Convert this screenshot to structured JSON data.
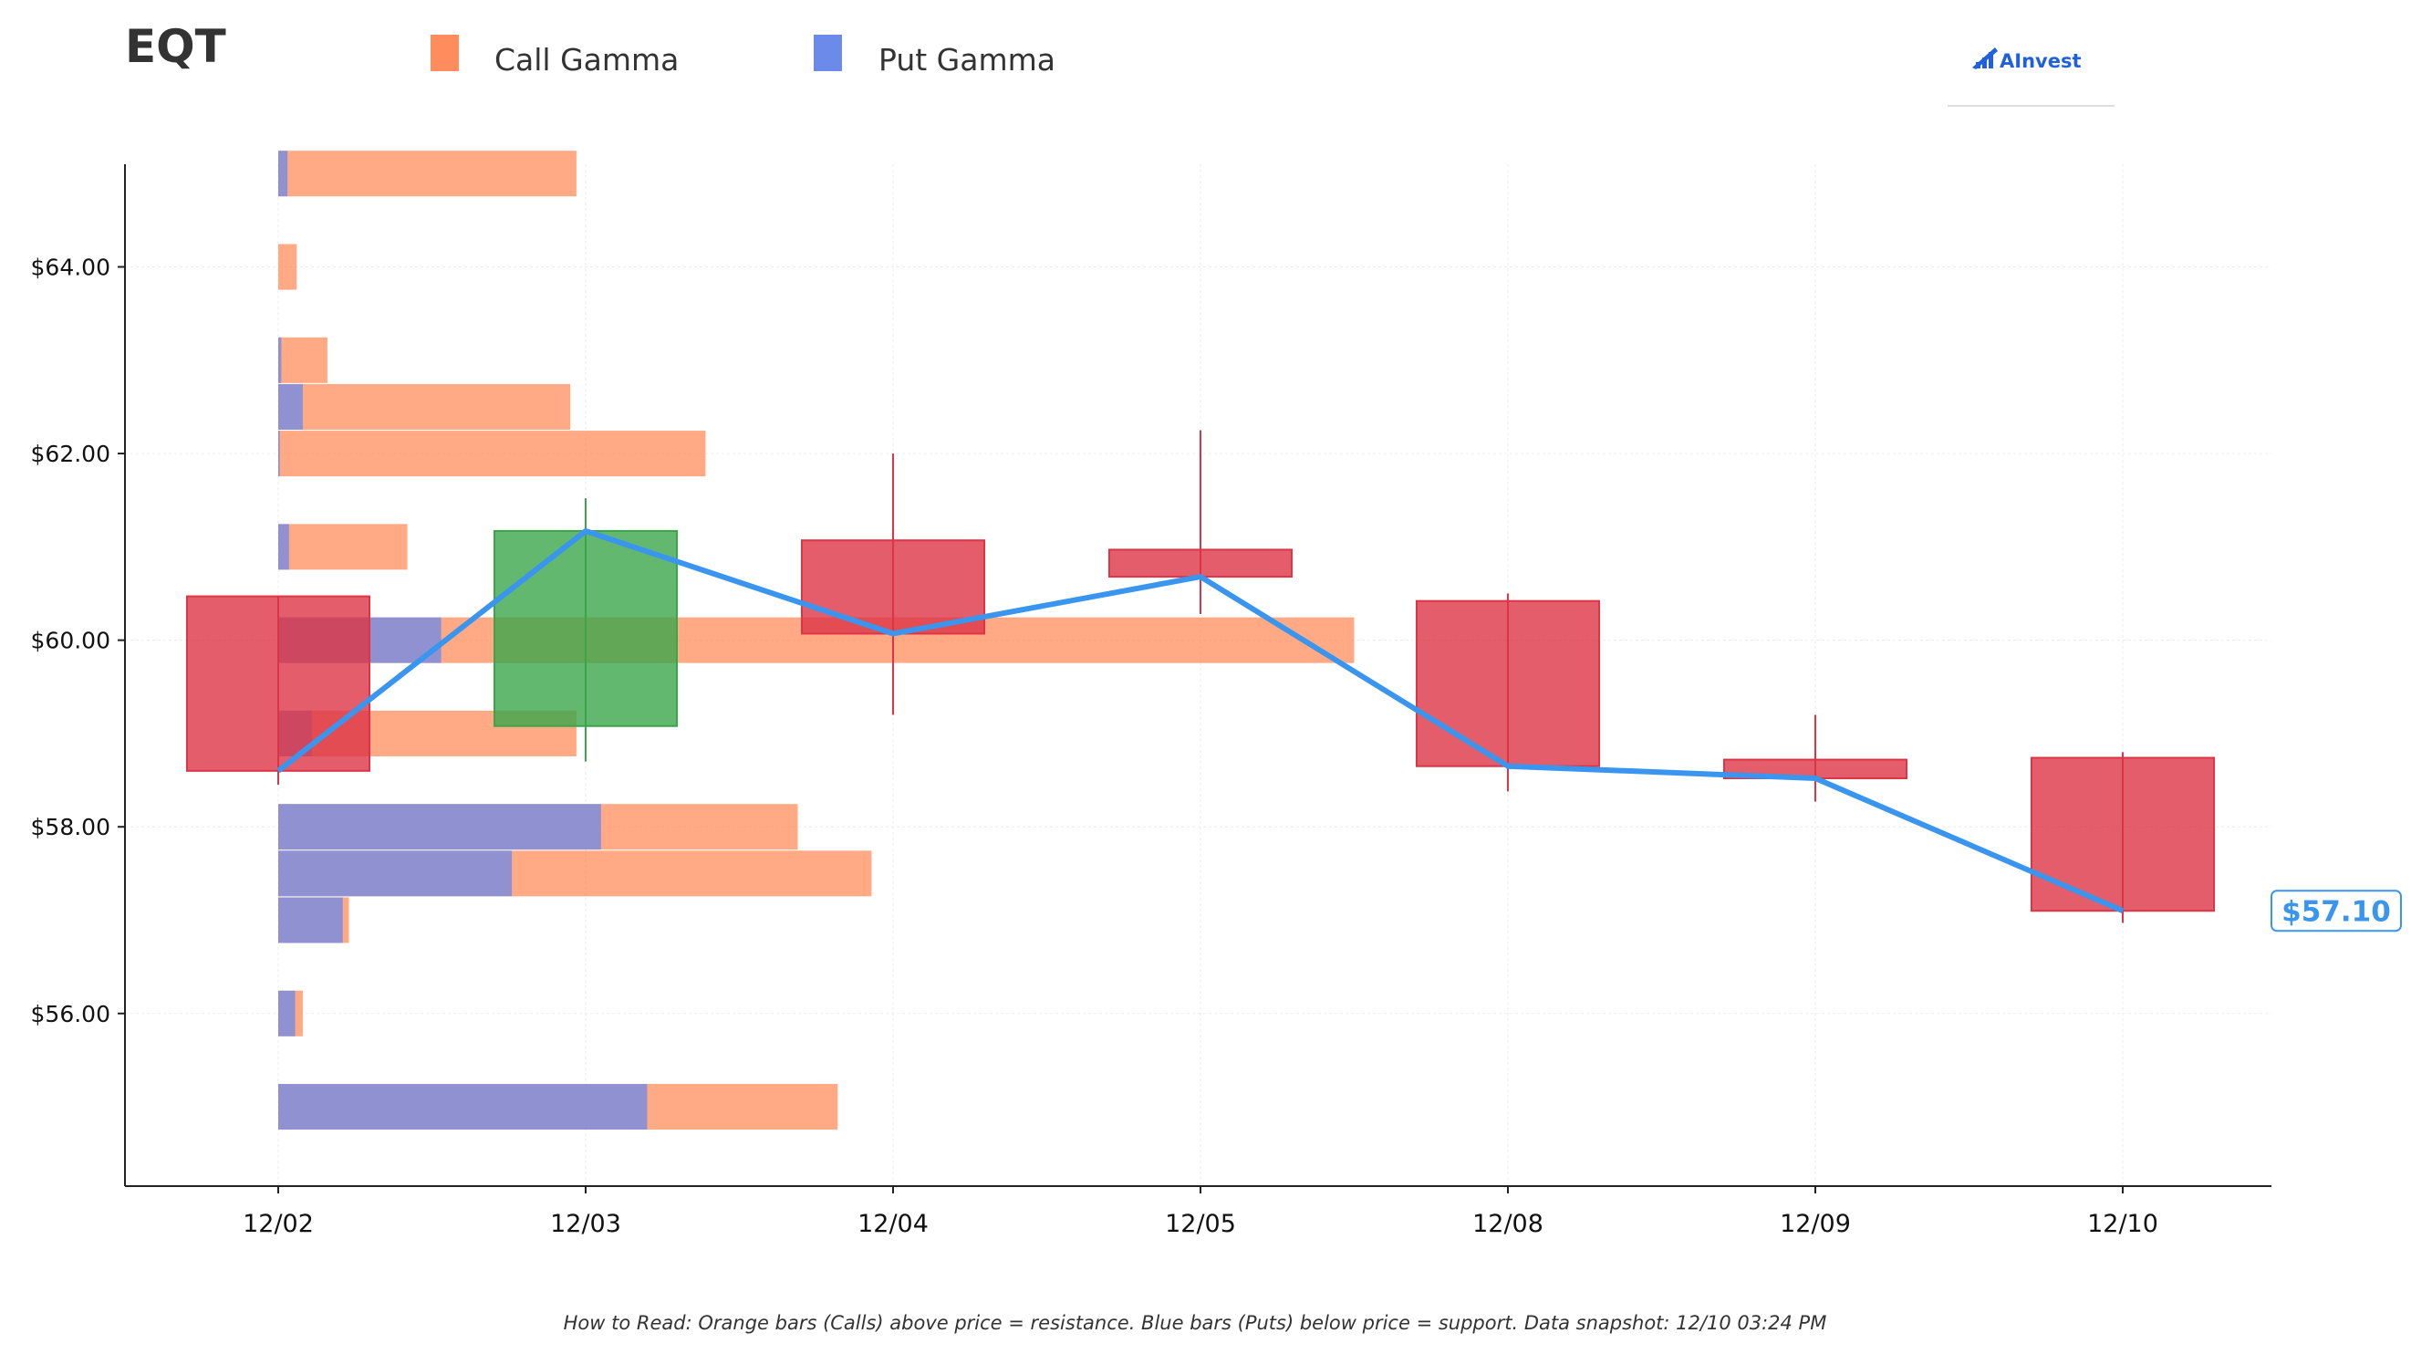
{
  "title": "EQT",
  "brand": {
    "name": "AInvest",
    "icon": "ainvest-logo-icon",
    "color": "#1f5fe0"
  },
  "legend": [
    {
      "label": "Call Gamma",
      "color": "#ff8c5c"
    },
    {
      "label": "Put Gamma",
      "color": "#6b8aea"
    }
  ],
  "footnote": "How to Read: Orange bars (Calls) above price = resistance. Blue bars (Puts) below price = support. Data snapshot: 12/10 03:24 PM",
  "colors": {
    "up": "#3aa64a",
    "down": "#dc3545",
    "line": "#3a95ee",
    "call": "#ff8c5c",
    "put": "#6b8aea"
  },
  "chart_data": {
    "type": "candlestick",
    "categories": [
      "12/02",
      "12/03",
      "12/04",
      "12/05",
      "12/08",
      "12/09",
      "12/10"
    ],
    "ylim": [
      54.15,
      65.1
    ],
    "yticks": [
      {
        "value": 56,
        "label": "$56.00"
      },
      {
        "value": 58,
        "label": "$58.00"
      },
      {
        "value": 60,
        "label": "$60.00"
      },
      {
        "value": 62,
        "label": "$62.00"
      },
      {
        "value": 64,
        "label": "$64.00"
      }
    ],
    "grid": true,
    "candles": [
      {
        "open": 60.47,
        "close": 58.6,
        "high": 60.47,
        "low": 58.45
      },
      {
        "open": 59.08,
        "close": 61.17,
        "high": 61.52,
        "low": 58.7
      },
      {
        "open": 61.07,
        "close": 60.07,
        "high": 62.0,
        "low": 59.2
      },
      {
        "open": 60.97,
        "close": 60.68,
        "high": 62.25,
        "low": 60.28
      },
      {
        "open": 60.42,
        "close": 58.65,
        "high": 60.5,
        "low": 58.38
      },
      {
        "open": 58.72,
        "close": 58.52,
        "high": 59.2,
        "low": 58.27
      },
      {
        "open": 58.74,
        "close": 57.1,
        "high": 58.8,
        "low": 56.97
      }
    ],
    "close_line": [
      58.6,
      61.17,
      60.07,
      60.68,
      58.65,
      58.52,
      57.1
    ],
    "last_price": {
      "value": 57.1,
      "label": "$57.10"
    },
    "gamma_bars": [
      {
        "price": 65.0,
        "call": 0.97,
        "put": 0.03
      },
      {
        "price": 64.0,
        "call": 0.06,
        "put": 0
      },
      {
        "price": 63.0,
        "call": 0.16,
        "put": 0.01
      },
      {
        "price": 62.5,
        "call": 0.95,
        "put": 0.08
      },
      {
        "price": 62.0,
        "call": 1.39,
        "put": 0.005
      },
      {
        "price": 61.0,
        "call": 0.42,
        "put": 0.035
      },
      {
        "price": 60.0,
        "call": 3.5,
        "put": 0.53
      },
      {
        "price": 59.0,
        "call": 0.97,
        "put": 0.11
      },
      {
        "price": 58.0,
        "call": 1.69,
        "put": 1.05
      },
      {
        "price": 57.5,
        "call": 1.93,
        "put": 0.76
      },
      {
        "price": 57.0,
        "call": 0.23,
        "put": 0.21
      },
      {
        "price": 56.0,
        "call": 0.08,
        "put": 0.055
      },
      {
        "price": 55.0,
        "call": 1.82,
        "put": 1.2
      }
    ]
  }
}
